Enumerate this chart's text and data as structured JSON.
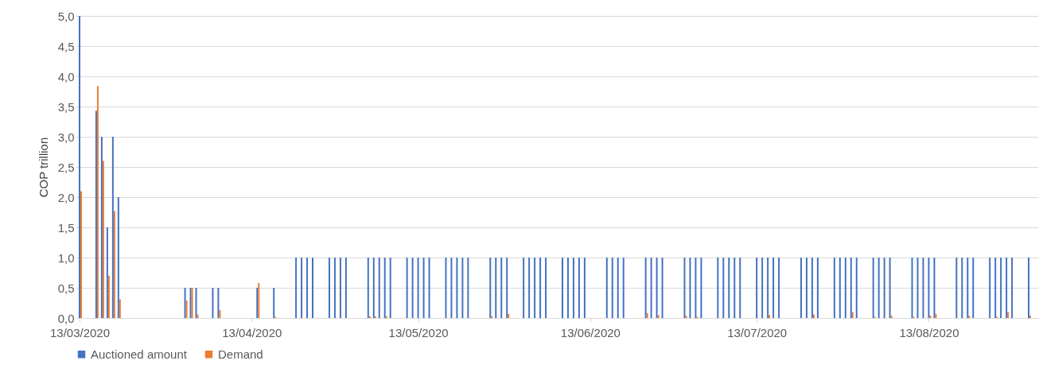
{
  "chart_data": {
    "type": "bar",
    "ylabel": "COP trillion",
    "x": [
      "2020-03-13",
      "2020-03-16",
      "2020-03-17",
      "2020-03-18",
      "2020-03-19",
      "2020-03-20",
      "2020-04-01",
      "2020-04-02",
      "2020-04-03",
      "2020-04-06",
      "2020-04-07",
      "2020-04-14",
      "2020-04-17",
      "2020-04-21",
      "2020-04-22",
      "2020-04-23",
      "2020-04-24",
      "2020-04-27",
      "2020-04-28",
      "2020-04-29",
      "2020-04-30",
      "2020-05-04",
      "2020-05-05",
      "2020-05-06",
      "2020-05-07",
      "2020-05-08",
      "2020-05-11",
      "2020-05-12",
      "2020-05-13",
      "2020-05-14",
      "2020-05-15",
      "2020-05-18",
      "2020-05-19",
      "2020-05-20",
      "2020-05-21",
      "2020-05-22",
      "2020-05-26",
      "2020-05-27",
      "2020-05-28",
      "2020-05-29",
      "2020-06-01",
      "2020-06-02",
      "2020-06-03",
      "2020-06-04",
      "2020-06-05",
      "2020-06-08",
      "2020-06-09",
      "2020-06-10",
      "2020-06-11",
      "2020-06-12",
      "2020-06-16",
      "2020-06-17",
      "2020-06-18",
      "2020-06-19",
      "2020-06-23",
      "2020-06-24",
      "2020-06-25",
      "2020-06-26",
      "2020-06-30",
      "2020-07-01",
      "2020-07-02",
      "2020-07-03",
      "2020-07-06",
      "2020-07-07",
      "2020-07-08",
      "2020-07-09",
      "2020-07-10",
      "2020-07-13",
      "2020-07-14",
      "2020-07-15",
      "2020-07-16",
      "2020-07-17",
      "2020-07-21",
      "2020-07-22",
      "2020-07-23",
      "2020-07-24",
      "2020-07-27",
      "2020-07-28",
      "2020-07-29",
      "2020-07-30",
      "2020-07-31",
      "2020-08-03",
      "2020-08-04",
      "2020-08-05",
      "2020-08-06",
      "2020-08-10",
      "2020-08-11",
      "2020-08-12",
      "2020-08-13",
      "2020-08-14",
      "2020-08-18",
      "2020-08-19",
      "2020-08-20",
      "2020-08-21",
      "2020-08-24",
      "2020-08-25",
      "2020-08-26",
      "2020-08-27",
      "2020-08-28",
      "2020-08-31"
    ],
    "series": [
      {
        "name": "Auctioned amount",
        "color": "#4472c4",
        "values": [
          5.0,
          3.43,
          3.0,
          1.5,
          3.0,
          2.0,
          0.5,
          0.5,
          0.5,
          0.5,
          0.5,
          0.5,
          0.5,
          1,
          1,
          1,
          1,
          1,
          1,
          1,
          1,
          1,
          1,
          1,
          1,
          1,
          1,
          1,
          1,
          1,
          1,
          1,
          1,
          1,
          1,
          1,
          1,
          1,
          1,
          1,
          1,
          1,
          1,
          1,
          1,
          1,
          1,
          1,
          1,
          1,
          1,
          1,
          1,
          1,
          1,
          1,
          1,
          1,
          1,
          1,
          1,
          1,
          1,
          1,
          1,
          1,
          1,
          1,
          1,
          1,
          1,
          1,
          1,
          1,
          1,
          1,
          1,
          1,
          1,
          1,
          1,
          1,
          1,
          1,
          1,
          1,
          1,
          1,
          1,
          1,
          1,
          1,
          1,
          1,
          1,
          1,
          1,
          1,
          1,
          1
        ]
      },
      {
        "name": "Demand",
        "color": "#ed7d31",
        "values": [
          2.1,
          3.84,
          2.6,
          0.7,
          1.77,
          0.31,
          0.29,
          0.5,
          0.06,
          null,
          0.13,
          0.58,
          0.02,
          null,
          null,
          null,
          null,
          null,
          null,
          null,
          null,
          0.03,
          0.03,
          null,
          0.03,
          null,
          null,
          null,
          null,
          null,
          null,
          null,
          null,
          null,
          null,
          null,
          0.03,
          null,
          null,
          0.07,
          null,
          null,
          null,
          null,
          null,
          null,
          null,
          null,
          null,
          null,
          null,
          null,
          null,
          null,
          0.08,
          null,
          0.05,
          null,
          0.04,
          null,
          0.02,
          null,
          null,
          null,
          null,
          null,
          null,
          null,
          null,
          0.05,
          null,
          null,
          null,
          null,
          0.06,
          null,
          null,
          null,
          null,
          0.1,
          null,
          0.02,
          null,
          null,
          0.04,
          0.02,
          null,
          null,
          0.04,
          0.07,
          null,
          null,
          0.04,
          null,
          null,
          0.02,
          null,
          0.1,
          null,
          0.04
        ]
      }
    ],
    "xlim": [
      "2020-03-13",
      "2020-09-01"
    ],
    "xticks": [
      {
        "value": "2020-03-13",
        "label": "13/03/2020"
      },
      {
        "value": "2020-04-13",
        "label": "13/04/2020"
      },
      {
        "value": "2020-05-13",
        "label": "13/05/2020"
      },
      {
        "value": "2020-06-13",
        "label": "13/06/2020"
      },
      {
        "value": "2020-07-13",
        "label": "13/07/2020"
      },
      {
        "value": "2020-08-13",
        "label": "13/08/2020"
      }
    ],
    "ylim": [
      0,
      5
    ],
    "yticks": [
      {
        "value": 0,
        "label": "0,0"
      },
      {
        "value": 0.5,
        "label": "0,5"
      },
      {
        "value": 1,
        "label": "1,0"
      },
      {
        "value": 1.5,
        "label": "1,5"
      },
      {
        "value": 2,
        "label": "2,0"
      },
      {
        "value": 2.5,
        "label": "2,5"
      },
      {
        "value": 3,
        "label": "3,0"
      },
      {
        "value": 3.5,
        "label": "3,5"
      },
      {
        "value": 4,
        "label": "4,0"
      },
      {
        "value": 4.5,
        "label": "4,5"
      },
      {
        "value": 5,
        "label": "5,0"
      }
    ],
    "grid": "y",
    "legend": "bottom"
  }
}
